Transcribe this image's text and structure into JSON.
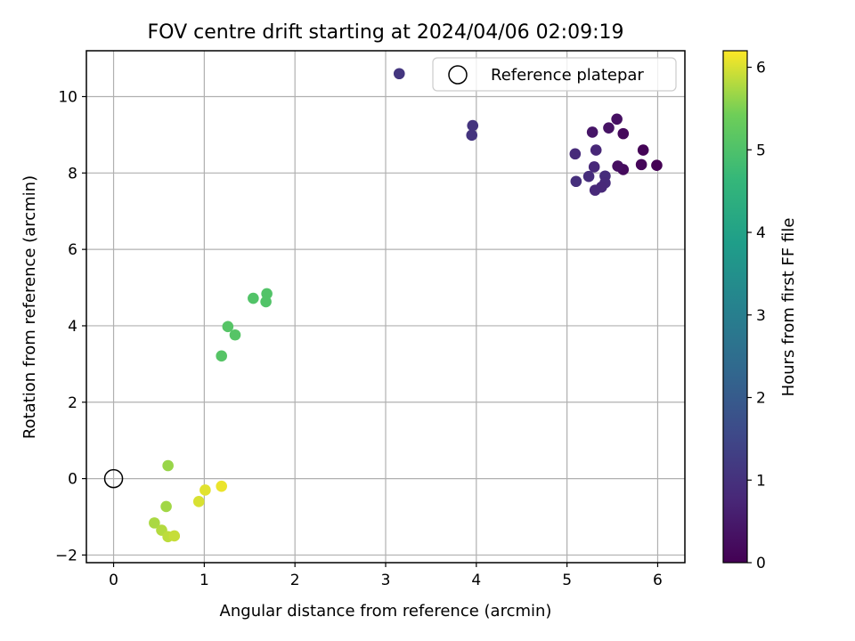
{
  "chart_data": {
    "type": "scatter",
    "title": "FOV centre drift starting at 2024/04/06 02:09:19",
    "xlabel": "Angular distance from reference (arcmin)",
    "ylabel": "Rotation from reference (arcmin)",
    "xlim": [
      -0.3,
      6.3
    ],
    "ylim": [
      -2.2,
      11.2
    ],
    "xticks": [
      0,
      1,
      2,
      3,
      4,
      5,
      6
    ],
    "yticks": [
      -2,
      0,
      2,
      4,
      6,
      8,
      10
    ],
    "grid": true,
    "legend": {
      "position": "top-right",
      "entries": [
        "Reference platepar"
      ]
    },
    "colormap": "viridis",
    "colorbar": {
      "label": "Hours from first FF file",
      "range": [
        0,
        6.2
      ],
      "ticks": [
        0,
        1,
        2,
        3,
        4,
        5,
        6
      ]
    },
    "reference_point": {
      "name": "Reference platepar",
      "x": 0,
      "y": 0
    },
    "series": [
      {
        "name": "FOV centre",
        "points": [
          {
            "x": 5.99,
            "y": 8.2,
            "c": 0.0
          },
          {
            "x": 5.84,
            "y": 8.6,
            "c": 0.05
          },
          {
            "x": 5.82,
            "y": 8.22,
            "c": 0.1
          },
          {
            "x": 5.62,
            "y": 9.03,
            "c": 0.15
          },
          {
            "x": 5.62,
            "y": 8.09,
            "c": 0.2
          },
          {
            "x": 5.56,
            "y": 8.18,
            "c": 0.25
          },
          {
            "x": 5.55,
            "y": 9.41,
            "c": 0.3
          },
          {
            "x": 5.46,
            "y": 9.18,
            "c": 0.35
          },
          {
            "x": 5.28,
            "y": 9.07,
            "c": 0.4
          },
          {
            "x": 5.32,
            "y": 8.6,
            "c": 0.75
          },
          {
            "x": 5.3,
            "y": 8.16,
            "c": 0.8
          },
          {
            "x": 5.09,
            "y": 8.5,
            "c": 0.85
          },
          {
            "x": 5.24,
            "y": 7.91,
            "c": 0.9
          },
          {
            "x": 5.1,
            "y": 7.78,
            "c": 0.95
          },
          {
            "x": 5.42,
            "y": 7.92,
            "c": 0.9
          },
          {
            "x": 5.42,
            "y": 7.74,
            "c": 0.85
          },
          {
            "x": 5.38,
            "y": 7.63,
            "c": 0.8
          },
          {
            "x": 5.31,
            "y": 7.55,
            "c": 0.8
          },
          {
            "x": 3.96,
            "y": 9.24,
            "c": 1.05
          },
          {
            "x": 3.95,
            "y": 8.99,
            "c": 1.05
          },
          {
            "x": 3.15,
            "y": 10.6,
            "c": 1.1
          },
          {
            "x": 1.69,
            "y": 4.84,
            "c": 5.05
          },
          {
            "x": 1.54,
            "y": 4.72,
            "c": 5.05
          },
          {
            "x": 1.68,
            "y": 4.63,
            "c": 5.05
          },
          {
            "x": 1.26,
            "y": 3.98,
            "c": 5.1
          },
          {
            "x": 1.34,
            "y": 3.76,
            "c": 5.1
          },
          {
            "x": 1.19,
            "y": 3.21,
            "c": 5.1
          },
          {
            "x": 0.6,
            "y": 0.34,
            "c": 5.65
          },
          {
            "x": 0.58,
            "y": -0.73,
            "c": 5.7
          },
          {
            "x": 0.45,
            "y": -1.16,
            "c": 5.75
          },
          {
            "x": 0.53,
            "y": -1.35,
            "c": 5.8
          },
          {
            "x": 0.6,
            "y": -1.52,
            "c": 5.85
          },
          {
            "x": 0.67,
            "y": -1.5,
            "c": 5.9
          },
          {
            "x": 0.94,
            "y": -0.6,
            "c": 6.0
          },
          {
            "x": 1.01,
            "y": -0.3,
            "c": 6.05
          },
          {
            "x": 1.19,
            "y": -0.2,
            "c": 6.1
          }
        ]
      }
    ]
  }
}
